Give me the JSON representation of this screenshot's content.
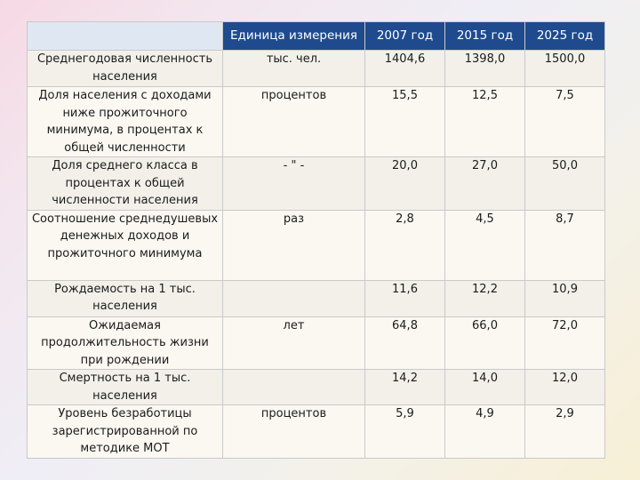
{
  "table": {
    "headers": [
      "",
      "Единица измерения",
      "2007 год",
      "2015 год",
      "2025 год"
    ],
    "rows": [
      {
        "indicator": "Среднегодовая численность населения",
        "unit": "тыс. чел.",
        "v2007": "1404,6",
        "v2015": "1398,0",
        "v2025": "1500,0"
      },
      {
        "indicator": "Доля населения с доходами ниже прожиточного минимума, в процентах к общей численности",
        "unit": "процентов",
        "v2007": "15,5",
        "v2015": "12,5",
        "v2025": "7,5"
      },
      {
        "indicator": "Доля среднего класса в процентах к общей численности населения",
        "unit": "- \" -",
        "v2007": "20,0",
        "v2015": "27,0",
        "v2025": "50,0"
      },
      {
        "indicator": "Соотношение среднедушевых денежных доходов и прожиточного минимума",
        "unit": "раз",
        "v2007": "2,8",
        "v2015": "4,5",
        "v2025": "8,7"
      },
      {
        "indicator": "Рождаемость на 1 тыс. населения",
        "unit": "",
        "v2007": "11,6",
        "v2015": "12,2",
        "v2025": "10,9"
      },
      {
        "indicator": "Ожидаемая продолжительность жизни при рождении",
        "unit": "лет",
        "v2007": "64,8",
        "v2015": "66,0",
        "v2025": "72,0"
      },
      {
        "indicator": "Смертность на 1 тыс. населения",
        "unit": "",
        "v2007": "14,2",
        "v2015": "14,0",
        "v2025": "12,0"
      },
      {
        "indicator": "Уровень безработицы зарегистрированной по методике МОТ",
        "unit": "процентов",
        "v2007": "5,9",
        "v2015": "4,9",
        "v2025": "2,9"
      }
    ]
  },
  "colors": {
    "header_bg": "#1f4b8e",
    "header_blank_bg": "#dfe7f2",
    "row_bg": "#f3f0ea",
    "row_alt_bg": "#fbf8f2"
  }
}
